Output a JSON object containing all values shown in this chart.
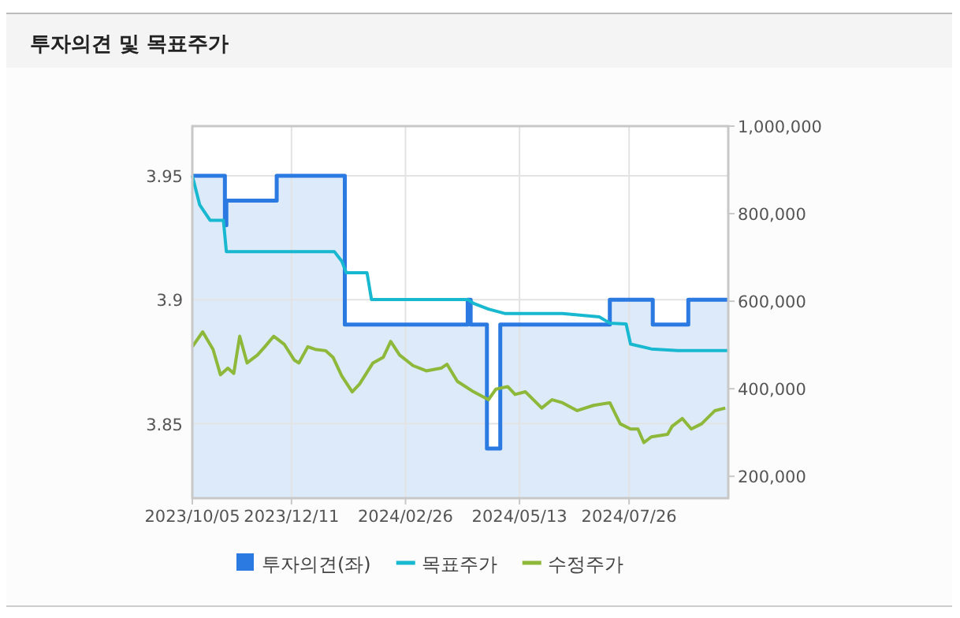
{
  "chart_data": {
    "type": "line",
    "title": "투자의견 및 목표주가",
    "xlim": [
      "2023-10-05",
      "2024-10-01"
    ],
    "xticks": [
      {
        "value": "2023-10-05",
        "label": "2023/10/05"
      },
      {
        "value": "2023-12-11",
        "label": "2023/12/11"
      },
      {
        "value": "2024-02-26",
        "label": "2024/02/26"
      },
      {
        "value": "2024-05-13",
        "label": "2024/05/13"
      },
      {
        "value": "2024-07-26",
        "label": "2024/07/26"
      }
    ],
    "ylim": [
      3.82,
      3.97
    ],
    "yticks": [
      3.85,
      3.9,
      3.95
    ],
    "y2lim": [
      150000,
      1000000
    ],
    "y2ticks": [
      {
        "value": 200000,
        "label": "200,000"
      },
      {
        "value": 400000,
        "label": "400,000"
      },
      {
        "value": 600000,
        "label": "600,000"
      },
      {
        "value": 800000,
        "label": "800,000"
      },
      {
        "value": 1000000,
        "label": "1,000,000"
      }
    ],
    "grid": true,
    "legend": "bottom",
    "series": [
      {
        "name": "투자의견(좌)",
        "type": "area",
        "color": "#2a7ae2",
        "x": [
          "2023-10-05",
          "2023-10-27",
          "2023-10-27",
          "2023-10-28",
          "2023-10-28",
          "2023-12-01",
          "2023-12-01",
          "2024-01-16",
          "2024-01-16",
          "2024-04-08",
          "2024-04-08",
          "2024-04-10",
          "2024-04-10",
          "2024-04-21",
          "2024-04-21",
          "2024-04-30",
          "2024-04-30",
          "2024-07-13",
          "2024-07-13",
          "2024-08-11",
          "2024-08-11",
          "2024-09-04",
          "2024-09-04",
          "2024-10-01"
        ],
        "values": [
          3.95,
          3.95,
          3.93,
          3.93,
          3.94,
          3.94,
          3.95,
          3.95,
          3.89,
          3.89,
          3.9,
          3.9,
          3.89,
          3.89,
          3.84,
          3.84,
          3.89,
          3.89,
          3.9,
          3.9,
          3.89,
          3.89,
          3.9,
          3.9
        ]
      },
      {
        "name": "목표주가",
        "axis": "y2",
        "color": "#17b8d0",
        "x": [
          "2023-10-05",
          "2023-10-07",
          "2023-10-10",
          "2023-10-14",
          "2023-10-17",
          "2023-10-26",
          "2023-10-28",
          "2024-01-09",
          "2024-01-14",
          "2024-01-17",
          "2024-01-31",
          "2024-02-03",
          "2024-04-08",
          "2024-04-12",
          "2024-04-22",
          "2024-05-03",
          "2024-06-11",
          "2024-07-06",
          "2024-07-13",
          "2024-07-24",
          "2024-07-27",
          "2024-08-10",
          "2024-08-28",
          "2024-10-01"
        ],
        "values": [
          887000,
          860000,
          820000,
          800000,
          785000,
          785000,
          713000,
          713000,
          691000,
          665000,
          665000,
          604000,
          604000,
          595000,
          582000,
          572000,
          572000,
          564000,
          550000,
          548000,
          502000,
          491000,
          487000,
          487000
        ]
      },
      {
        "name": "수정주가",
        "axis": "y2",
        "color": "#8db83a",
        "x": [
          "2023-10-05",
          "2023-10-12",
          "2023-10-19",
          "2023-10-24",
          "2023-10-29",
          "2023-11-02",
          "2023-11-06",
          "2023-11-11",
          "2023-11-18",
          "2023-11-23",
          "2023-11-29",
          "2023-12-06",
          "2023-12-13",
          "2023-12-16",
          "2023-12-22",
          "2023-12-27",
          "2024-01-03",
          "2024-01-08",
          "2024-01-14",
          "2024-01-21",
          "2024-01-26",
          "2024-02-04",
          "2024-02-11",
          "2024-02-16",
          "2024-02-22",
          "2024-03-02",
          "2024-03-11",
          "2024-03-21",
          "2024-03-25",
          "2024-04-01",
          "2024-04-12",
          "2024-04-22",
          "2024-04-27",
          "2024-05-05",
          "2024-05-10",
          "2024-05-17",
          "2024-05-28",
          "2024-06-04",
          "2024-06-11",
          "2024-06-21",
          "2024-07-02",
          "2024-07-13",
          "2024-07-20",
          "2024-07-27",
          "2024-08-01",
          "2024-08-05",
          "2024-08-10",
          "2024-08-21",
          "2024-08-24",
          "2024-08-31",
          "2024-09-06",
          "2024-09-13",
          "2024-09-22",
          "2024-09-29"
        ],
        "values": [
          496000,
          530000,
          490000,
          432000,
          447000,
          435000,
          520000,
          459000,
          477000,
          496000,
          520000,
          502000,
          465000,
          459000,
          496000,
          490000,
          487000,
          472000,
          429000,
          393000,
          411000,
          459000,
          472000,
          508000,
          477000,
          453000,
          441000,
          447000,
          456000,
          417000,
          393000,
          375000,
          399000,
          405000,
          387000,
          393000,
          356000,
          375000,
          368000,
          350000,
          362000,
          368000,
          320000,
          308000,
          308000,
          277000,
          290000,
          296000,
          314000,
          332000,
          308000,
          320000,
          350000,
          356000
        ]
      }
    ]
  }
}
